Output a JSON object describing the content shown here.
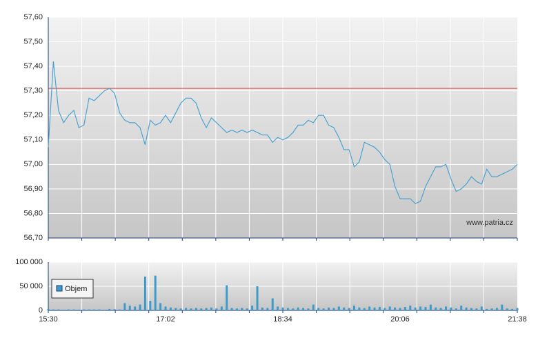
{
  "chart_data": [
    {
      "type": "line",
      "x": [
        "15:30",
        "15:34",
        "15:38",
        "15:42",
        "15:46",
        "15:50",
        "15:54",
        "15:58",
        "16:02",
        "16:06",
        "16:10",
        "16:14",
        "16:18",
        "16:22",
        "16:26",
        "16:30",
        "16:34",
        "16:38",
        "16:42",
        "16:46",
        "16:50",
        "16:54",
        "16:58",
        "17:02",
        "17:06",
        "17:10",
        "17:14",
        "17:18",
        "17:22",
        "17:26",
        "17:30",
        "17:34",
        "17:38",
        "17:42",
        "17:46",
        "17:50",
        "17:54",
        "17:58",
        "18:02",
        "18:06",
        "18:10",
        "18:14",
        "18:18",
        "18:22",
        "18:26",
        "18:30",
        "18:34",
        "18:38",
        "18:42",
        "18:46",
        "18:50",
        "18:54",
        "18:58",
        "19:02",
        "19:06",
        "19:10",
        "19:14",
        "19:18",
        "19:22",
        "19:26",
        "19:30",
        "19:34",
        "19:38",
        "19:42",
        "19:46",
        "19:50",
        "19:54",
        "19:58",
        "20:02",
        "20:06",
        "20:10",
        "20:14",
        "20:18",
        "20:22",
        "20:26",
        "20:30",
        "20:34",
        "20:38",
        "20:42",
        "20:46",
        "20:50",
        "20:54",
        "20:58",
        "21:02",
        "21:06",
        "21:10",
        "21:14",
        "21:18",
        "21:22",
        "21:26",
        "21:30",
        "21:34",
        "21:38"
      ],
      "values": [
        57.07,
        57.42,
        57.22,
        57.17,
        57.2,
        57.22,
        57.15,
        57.16,
        57.27,
        57.26,
        57.28,
        57.3,
        57.31,
        57.29,
        57.21,
        57.18,
        57.17,
        57.17,
        57.15,
        57.08,
        57.18,
        57.16,
        57.17,
        57.2,
        57.17,
        57.21,
        57.25,
        57.27,
        57.27,
        57.25,
        57.19,
        57.15,
        57.19,
        57.17,
        57.15,
        57.13,
        57.14,
        57.13,
        57.14,
        57.13,
        57.14,
        57.13,
        57.12,
        57.12,
        57.09,
        57.11,
        57.1,
        57.11,
        57.13,
        57.16,
        57.16,
        57.18,
        57.17,
        57.2,
        57.2,
        57.16,
        57.15,
        57.11,
        57.06,
        57.06,
        56.99,
        57.01,
        57.09,
        57.08,
        57.07,
        57.05,
        57.02,
        57.0,
        56.91,
        56.86,
        56.86,
        56.86,
        56.84,
        56.85,
        56.91,
        56.95,
        56.99,
        56.99,
        57.0,
        56.94,
        56.89,
        56.9,
        56.92,
        56.95,
        56.93,
        56.92,
        56.98,
        56.95,
        56.95,
        56.96,
        56.97,
        56.98,
        57.0
      ],
      "color": "#4aa3d2",
      "xlim": [
        "15:30",
        "21:38"
      ],
      "ylim": [
        56.7,
        57.6
      ],
      "yticks": [
        {
          "value": 56.7,
          "label": "56,70"
        },
        {
          "value": 56.8,
          "label": "56,80"
        },
        {
          "value": 56.9,
          "label": "56,90"
        },
        {
          "value": 57.0,
          "label": "57,00"
        },
        {
          "value": 57.1,
          "label": "57,10"
        },
        {
          "value": 57.2,
          "label": "57,20"
        },
        {
          "value": 57.3,
          "label": "57,30"
        },
        {
          "value": 57.4,
          "label": "57,40"
        },
        {
          "value": 57.5,
          "label": "57,50"
        },
        {
          "value": 57.6,
          "label": "57,60"
        }
      ],
      "reference_line": {
        "value": 57.31,
        "color": "#e0403a"
      },
      "watermark": "www.patria.cz",
      "grid": true
    },
    {
      "type": "bar",
      "x": [
        "15:30",
        "15:34",
        "15:38",
        "15:42",
        "15:46",
        "15:50",
        "15:54",
        "15:58",
        "16:02",
        "16:06",
        "16:10",
        "16:14",
        "16:18",
        "16:22",
        "16:26",
        "16:30",
        "16:34",
        "16:38",
        "16:42",
        "16:46",
        "16:50",
        "16:54",
        "16:58",
        "17:02",
        "17:06",
        "17:10",
        "17:14",
        "17:18",
        "17:22",
        "17:26",
        "17:30",
        "17:34",
        "17:38",
        "17:42",
        "17:46",
        "17:50",
        "17:54",
        "17:58",
        "18:02",
        "18:06",
        "18:10",
        "18:14",
        "18:18",
        "18:22",
        "18:26",
        "18:30",
        "18:34",
        "18:38",
        "18:42",
        "18:46",
        "18:50",
        "18:54",
        "18:58",
        "19:02",
        "19:06",
        "19:10",
        "19:14",
        "19:18",
        "19:22",
        "19:26",
        "19:30",
        "19:34",
        "19:38",
        "19:42",
        "19:46",
        "19:50",
        "19:54",
        "19:58",
        "20:02",
        "20:06",
        "20:10",
        "20:14",
        "20:18",
        "20:22",
        "20:26",
        "20:30",
        "20:34",
        "20:38",
        "20:42",
        "20:46",
        "20:50",
        "20:54",
        "20:58",
        "21:02",
        "21:06",
        "21:10",
        "21:14",
        "21:18",
        "21:22",
        "21:26",
        "21:30",
        "21:34",
        "21:38"
      ],
      "series": [
        {
          "name": "Objem",
          "color": "#3c9bcb",
          "values": [
            3000,
            2000,
            2000,
            1500,
            2000,
            2000,
            1500,
            2000,
            2000,
            2000,
            2000,
            1500,
            3000,
            2500,
            2000,
            15000,
            10000,
            8000,
            12000,
            70000,
            20000,
            72000,
            15000,
            8000,
            6000,
            5000,
            4000,
            5000,
            4000,
            5000,
            4000,
            5000,
            6000,
            4000,
            8000,
            52000,
            5000,
            4000,
            5000,
            4000,
            10000,
            50000,
            6000,
            5000,
            25000,
            8000,
            6000,
            5000,
            4000,
            6000,
            5000,
            4000,
            12000,
            5000,
            4000,
            6000,
            5000,
            8000,
            6000,
            5000,
            10000,
            6000,
            5000,
            8000,
            6000,
            7000,
            5000,
            8000,
            6000,
            5000,
            7000,
            10000,
            6000,
            8000,
            7000,
            12000,
            6000,
            5000,
            8000,
            6000,
            4000,
            10000,
            6000,
            5000,
            4000,
            8000,
            3000,
            4000,
            5000,
            12000,
            4000,
            3000,
            5000
          ]
        }
      ],
      "xlim": [
        "15:30",
        "21:38"
      ],
      "xticks": [
        "15:30",
        "17:02",
        "18:34",
        "20:06",
        "21:38"
      ],
      "ylim": [
        0,
        100000
      ],
      "yticks": [
        0,
        {
          "value": 50000,
          "label": "50 000"
        },
        {
          "value": 100000,
          "label": "100 000"
        }
      ],
      "grid": true
    }
  ]
}
